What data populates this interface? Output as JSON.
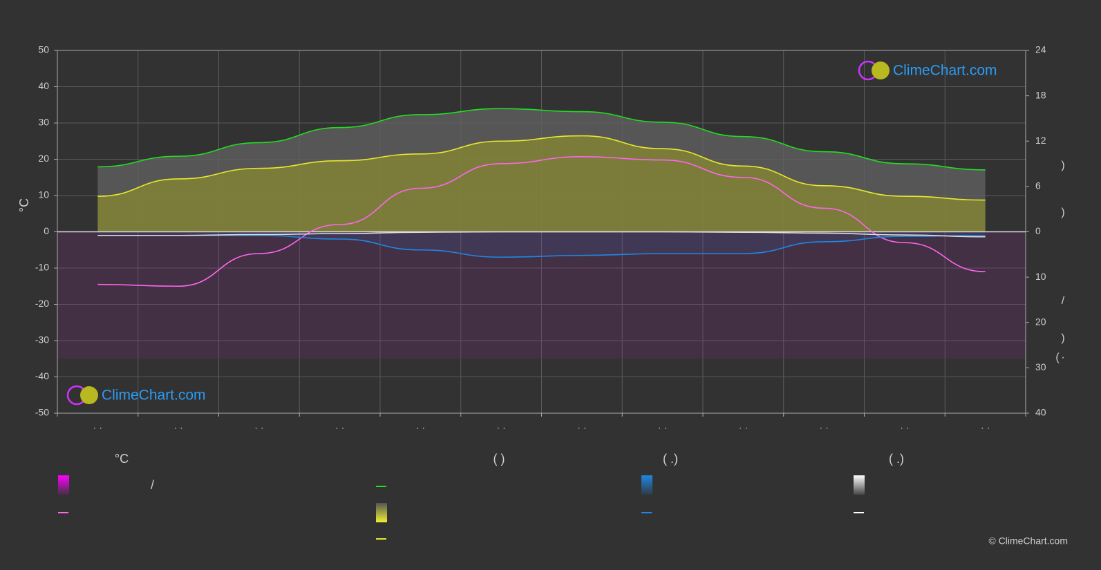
{
  "chart_data": {
    "type": "line",
    "categories": [
      "· ·",
      "· ·",
      "· ·",
      "· ·",
      "· ·",
      "· ·",
      "· ·",
      "· ·",
      "· ·",
      "· ·",
      "· ·",
      "· ·"
    ],
    "y_label": "°C",
    "ylim": [
      -50,
      50
    ],
    "yticks": [
      -50,
      -40,
      -30,
      -20,
      -10,
      0,
      10,
      20,
      30,
      40,
      50
    ],
    "y2lim": [
      0,
      24
    ],
    "y2ticks": [
      0,
      6,
      12,
      18,
      24
    ],
    "y3lim": [
      0,
      40
    ],
    "y3ticks": [
      10,
      20,
      30,
      40
    ],
    "right_labels": [
      ")",
      ")",
      "/",
      ")",
      "·",
      "("
    ],
    "grid": true,
    "series": [
      {
        "color": "#22dd22",
        "axis": "y2",
        "values": [
          8.6,
          10.0,
          11.8,
          13.8,
          15.5,
          16.3,
          15.9,
          14.5,
          12.6,
          10.6,
          9.0,
          8.2
        ]
      },
      {
        "color": "#e8e830",
        "axis": "y2",
        "values": [
          4.7,
          7.0,
          8.4,
          9.4,
          10.3,
          12.0,
          12.7,
          11.0,
          8.7,
          6.1,
          4.7,
          4.2
        ]
      },
      {
        "color": "#ff66ee",
        "axis": "y",
        "values": [
          -14.5,
          -15,
          -6,
          2,
          12,
          18.8,
          20.7,
          19.8,
          15,
          6.5,
          -3,
          -11
        ]
      },
      {
        "color": "#1e88e5",
        "axis": "y3",
        "values": [
          0.8,
          0.8,
          0.8,
          1.6,
          4.0,
          5.6,
          5.2,
          4.8,
          4.8,
          2.2,
          1.0,
          0.8
        ]
      },
      {
        "color": "#dddddd",
        "axis": "y3",
        "values": [
          0.8,
          0.8,
          0.6,
          0.4,
          0.1,
          0,
          0,
          0,
          0.1,
          0.3,
          0.7,
          1.1
        ]
      }
    ]
  },
  "legend": {
    "headers": [
      "°C",
      "(          )",
      "(   .)",
      "(   .)"
    ],
    "slash": "/"
  },
  "logo": "ClimeChart.com",
  "copyright": "© ClimeChart.com"
}
